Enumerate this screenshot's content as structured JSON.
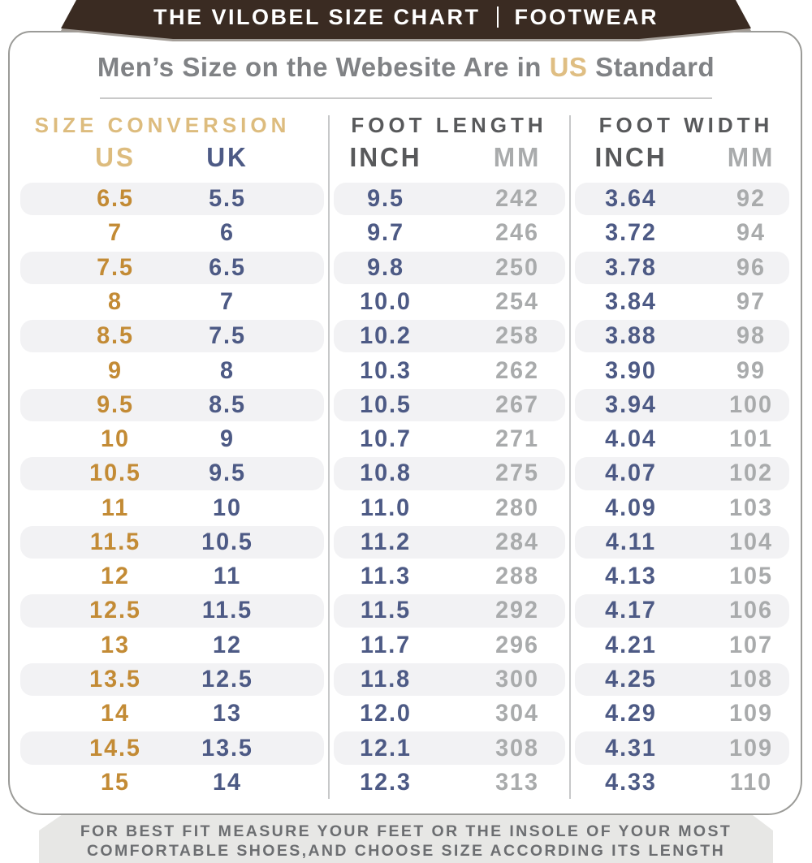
{
  "banner": {
    "title": "THE VILOBEL SIZE CHART",
    "separator": "|",
    "category": "FOOTWEAR"
  },
  "title": {
    "prefix": "Men’s Size on the Webesite Are in ",
    "highlight": "US",
    "suffix": " Standard"
  },
  "table": {
    "group_headers": {
      "size_conversion": "SIZE CONVERSION",
      "foot_length": "FOOT LENGTH",
      "foot_width": "FOOT WIDTH"
    },
    "column_headers": [
      "US",
      "UK",
      "INCH",
      "MM",
      "INCH",
      "MM"
    ],
    "rows": [
      [
        "6.5",
        "5.5",
        "9.5",
        "242",
        "3.64",
        "92"
      ],
      [
        "7",
        "6",
        "9.7",
        "246",
        "3.72",
        "94"
      ],
      [
        "7.5",
        "6.5",
        "9.8",
        "250",
        "3.78",
        "96"
      ],
      [
        "8",
        "7",
        "10.0",
        "254",
        "3.84",
        "97"
      ],
      [
        "8.5",
        "7.5",
        "10.2",
        "258",
        "3.88",
        "98"
      ],
      [
        "9",
        "8",
        "10.3",
        "262",
        "3.90",
        "99"
      ],
      [
        "9.5",
        "8.5",
        "10.5",
        "267",
        "3.94",
        "100"
      ],
      [
        "10",
        "9",
        "10.7",
        "271",
        "4.04",
        "101"
      ],
      [
        "10.5",
        "9.5",
        "10.8",
        "275",
        "4.07",
        "102"
      ],
      [
        "11",
        "10",
        "11.0",
        "280",
        "4.09",
        "103"
      ],
      [
        "11.5",
        "10.5",
        "11.2",
        "284",
        "4.11",
        "104"
      ],
      [
        "12",
        "11",
        "11.3",
        "288",
        "4.13",
        "105"
      ],
      [
        "12.5",
        "11.5",
        "11.5",
        "292",
        "4.17",
        "106"
      ],
      [
        "13",
        "12",
        "11.7",
        "296",
        "4.21",
        "107"
      ],
      [
        "13.5",
        "12.5",
        "11.8",
        "300",
        "4.25",
        "108"
      ],
      [
        "14",
        "13",
        "12.0",
        "304",
        "4.29",
        "109"
      ],
      [
        "14.5",
        "13.5",
        "12.1",
        "308",
        "4.31",
        "109"
      ],
      [
        "15",
        "14",
        "12.3",
        "313",
        "4.33",
        "110"
      ]
    ]
  },
  "footer": {
    "line1": "FOR BEST FIT MEASURE YOUR FEET OR THE INSOLE OF YOUR MOST",
    "line2": "COMFORTABLE SHOES,AND CHOOSE SIZE ACCORDING ITS LENGTH"
  },
  "colors": {
    "banner_brown": "#3a2b22",
    "tan": "#ddbc7e",
    "gold": "#c38b35",
    "navy": "#4d5a85",
    "dark_gray": "#58595b",
    "light_gray": "#a9abac",
    "title_gray": "#808285",
    "stripe": "#f2f2f4",
    "footer_bg": "#e7e7e5"
  }
}
